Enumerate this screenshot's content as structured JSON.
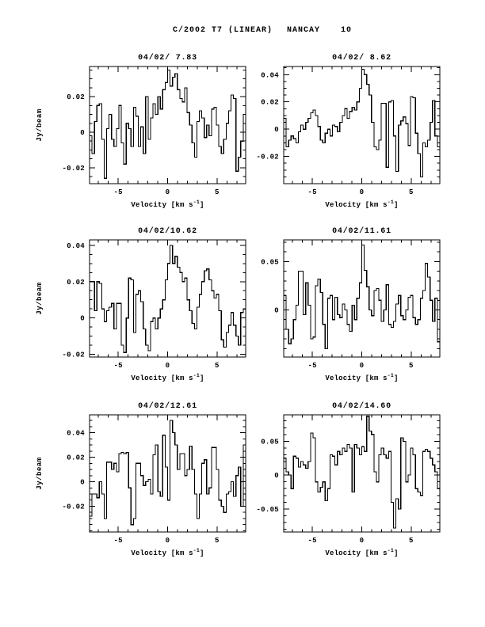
{
  "header": {
    "comet": "C/2002 T7 (LINEAR)",
    "telescope": "NANCAY",
    "page_number": "10"
  },
  "chart_data": [
    {
      "type": "line",
      "style": "histogram-step",
      "title": "04/02/ 7.83",
      "xlabel_main": "Velocity [km s",
      "xlabel_sup": "-1",
      "xlabel_close": "]",
      "ylabel": "Jy/beam",
      "x_range": [
        -7.9,
        7.9
      ],
      "y_range": [
        -0.029,
        0.037
      ],
      "xticks": [
        -5,
        0,
        5
      ],
      "xtick_labels": [
        "-5",
        "0",
        "5"
      ],
      "x_minor_step": 1,
      "yticks": [
        0.02,
        0,
        -0.02
      ],
      "ytick_labels": [
        "0.02",
        "0",
        "-0.02"
      ],
      "y_minor_step": 0.005,
      "values": [
        -0.002,
        -0.012,
        0.006,
        0.015,
        0.016,
        -0.004,
        -0.026,
        0.002,
        0.01,
        -0.004,
        -0.008,
        0.002,
        0.015,
        -0.006,
        -0.018,
        0.005,
        0.002,
        -0.008,
        0.014,
        0.009,
        -0.008,
        0.003,
        -0.012,
        0.02,
        -0.004,
        0.008,
        0.016,
        0.01,
        0.02,
        0.013,
        0.024,
        0.028,
        0.035,
        0.026,
        0.031,
        0.033,
        0.024,
        0.019,
        0.017,
        0.025,
        0.011,
        0.004,
        -0.006,
        -0.014,
        0.006,
        0.012,
        0.008,
        -0.003,
        0.004,
        -0.002,
        0.013,
        0.014,
        0.004,
        -0.008,
        -0.012,
        -0.004,
        0.005,
        0.012,
        0.021,
        0.019,
        -0.022,
        -0.014,
        -0.005,
        0.01
      ]
    },
    {
      "type": "line",
      "style": "histogram-step",
      "title": "04/02/ 8.62",
      "xlabel_main": "Velocity [km s",
      "xlabel_sup": "-1",
      "xlabel_close": "]",
      "ylabel": "",
      "x_range": [
        -7.9,
        7.9
      ],
      "y_range": [
        -0.04,
        0.046
      ],
      "xticks": [
        -5,
        0,
        5
      ],
      "xtick_labels": [
        "-5",
        "0",
        "5"
      ],
      "x_minor_step": 1,
      "yticks": [
        0.04,
        0.02,
        0,
        -0.02
      ],
      "ytick_labels": [
        "0.04",
        "0.02",
        "0",
        "-0.02"
      ],
      "y_minor_step": 0.005,
      "values": [
        0.008,
        -0.013,
        -0.008,
        -0.005,
        -0.007,
        -0.01,
        -0.002,
        0.003,
        0.0,
        0.005,
        0.008,
        0.012,
        0.014,
        0.01,
        0.002,
        -0.008,
        -0.01,
        -0.003,
        0.0,
        -0.005,
        0.003,
        0.002,
        -0.002,
        0.005,
        0.01,
        0.015,
        0.008,
        0.013,
        0.016,
        0.014,
        0.02,
        0.03,
        0.044,
        0.04,
        0.033,
        0.025,
        0.005,
        -0.013,
        -0.015,
        -0.008,
        0.019,
        0.019,
        -0.028,
        0.02,
        0.021,
        -0.005,
        -0.031,
        0.003,
        0.006,
        0.009,
        0.004,
        -0.012,
        0.024,
        0.023,
        -0.003,
        -0.018,
        -0.035,
        -0.01,
        -0.013,
        -0.008,
        0.005,
        0.021,
        -0.005,
        -0.013
      ]
    },
    {
      "type": "line",
      "style": "histogram-step",
      "title": "04/02/10.62",
      "xlabel_main": "Velocity [km s",
      "xlabel_sup": "-1",
      "xlabel_close": "]",
      "ylabel": "Jy/beam",
      "x_range": [
        -7.9,
        7.9
      ],
      "y_range": [
        -0.0215,
        0.043
      ],
      "xticks": [
        -5,
        0,
        5
      ],
      "xtick_labels": [
        "-5",
        "0",
        "5"
      ],
      "x_minor_step": 1,
      "yticks": [
        0.04,
        0.02,
        0,
        -0.02
      ],
      "ytick_labels": [
        "0.04",
        "0.02",
        "0",
        "-0.02"
      ],
      "y_minor_step": 0.005,
      "values": [
        0.02,
        0.02,
        0.004,
        0.02,
        0.019,
        0.005,
        -0.002,
        0.004,
        0.006,
        0.008,
        -0.006,
        0.008,
        0.008,
        -0.015,
        -0.019,
        0.0,
        0.022,
        0.021,
        -0.008,
        0.013,
        0.015,
        0.009,
        -0.006,
        -0.015,
        -0.018,
        -0.002,
        0.0,
        -0.006,
        0.0,
        0.005,
        0.01,
        0.021,
        0.03,
        0.04,
        0.03,
        0.034,
        0.028,
        0.025,
        0.02,
        0.022,
        0.01,
        0.004,
        -0.003,
        -0.006,
        0.006,
        0.013,
        0.02,
        0.026,
        0.027,
        0.021,
        0.015,
        0.011,
        0.013,
        0.004,
        -0.012,
        -0.016,
        -0.008,
        -0.004,
        0.003,
        -0.004,
        -0.01,
        -0.015,
        0.003,
        0.005
      ]
    },
    {
      "type": "line",
      "style": "histogram-step",
      "title": "04/02/11.61",
      "xlabel_main": "Velocity [km s",
      "xlabel_sup": "-1",
      "xlabel_close": "]",
      "ylabel": "",
      "x_range": [
        -7.9,
        7.9
      ],
      "y_range": [
        -0.0487,
        0.0724
      ],
      "xticks": [
        -5,
        0,
        5
      ],
      "xtick_labels": [
        "-5",
        "0",
        "5"
      ],
      "x_minor_step": 1,
      "yticks": [
        0.05,
        0
      ],
      "ytick_labels": [
        "0.05",
        "0"
      ],
      "y_minor_step": 0.01,
      "values": [
        0.015,
        -0.02,
        -0.035,
        -0.03,
        -0.01,
        0.005,
        0.04,
        0.04,
        -0.005,
        0.028,
        0.005,
        -0.03,
        -0.028,
        0.025,
        0.032,
        0.018,
        -0.015,
        -0.04,
        0.012,
        0.015,
        -0.01,
        0.013,
        -0.005,
        -0.008,
        0.006,
        0.0,
        -0.015,
        -0.022,
        0.005,
        -0.01,
        0.012,
        0.028,
        0.067,
        0.041,
        0.024,
        0.0,
        -0.006,
        0.02,
        0.022,
        0.01,
        -0.012,
        0.0,
        0.026,
        -0.015,
        -0.018,
        -0.012,
        0.006,
        0.015,
        -0.006,
        -0.01,
        0.0,
        0.013,
        0.015,
        -0.008,
        -0.015,
        -0.01,
        0.012,
        0.02,
        0.048,
        0.034,
        0.01,
        -0.012,
        0.012,
        -0.033
      ]
    },
    {
      "type": "line",
      "style": "histogram-step",
      "title": "04/02/12.61",
      "xlabel_main": "Velocity [km s",
      "xlabel_sup": "-1",
      "xlabel_close": "]",
      "ylabel": "Jy/beam",
      "x_range": [
        -7.9,
        7.9
      ],
      "y_range": [
        -0.041,
        0.0546
      ],
      "xticks": [
        -5,
        0,
        5
      ],
      "xtick_labels": [
        "-5",
        "0",
        "5"
      ],
      "x_minor_step": 1,
      "yticks": [
        0.04,
        0.02,
        0,
        -0.02
      ],
      "ytick_labels": [
        "0.04",
        "0.02",
        "0",
        "-0.02"
      ],
      "y_minor_step": 0.005,
      "values": [
        -0.028,
        -0.01,
        -0.01,
        -0.013,
        0.0,
        -0.01,
        -0.03,
        0.016,
        0.016,
        0.01,
        0.015,
        0.008,
        0.023,
        0.024,
        0.023,
        0.024,
        -0.005,
        -0.035,
        -0.03,
        0.015,
        0.015,
        0.005,
        -0.003,
        0.0,
        0.002,
        -0.01,
        0.022,
        0.03,
        -0.008,
        -0.012,
        0.038,
        0.012,
        -0.015,
        0.05,
        0.04,
        0.03,
        0.01,
        0.023,
        0.023,
        0.005,
        0.01,
        0.029,
        0.01,
        -0.01,
        -0.03,
        -0.01,
        0.015,
        0.018,
        -0.01,
        -0.005,
        0.028,
        0.028,
        0.01,
        -0.015,
        -0.02,
        -0.025,
        -0.01,
        -0.008,
        0.0,
        -0.012,
        0.005,
        0.012,
        -0.02,
        0.03
      ]
    },
    {
      "type": "line",
      "style": "histogram-step",
      "title": "04/02/14.60",
      "xlabel_main": "Velocity [km s",
      "xlabel_sup": "-1",
      "xlabel_close": "]",
      "ylabel": "",
      "x_range": [
        -7.9,
        7.9
      ],
      "y_range": [
        -0.084,
        0.089
      ],
      "xticks": [
        -5,
        0,
        5
      ],
      "xtick_labels": [
        "-5",
        "0",
        "5"
      ],
      "x_minor_step": 1,
      "yticks": [
        0.05,
        0,
        -0.05
      ],
      "ytick_labels": [
        "0.05",
        "0",
        "-0.05"
      ],
      "y_minor_step": 0.01,
      "values": [
        0.025,
        0.005,
        0.0,
        -0.02,
        0.028,
        0.025,
        0.012,
        0.02,
        0.015,
        0.01,
        0.02,
        0.062,
        0.055,
        -0.01,
        -0.025,
        -0.018,
        -0.01,
        -0.038,
        -0.02,
        0.03,
        0.028,
        0.015,
        0.035,
        0.03,
        0.04,
        0.035,
        0.045,
        0.04,
        -0.025,
        0.045,
        0.04,
        0.03,
        0.042,
        0.035,
        0.087,
        0.065,
        0.06,
        0.005,
        -0.01,
        0.03,
        0.04,
        0.03,
        0.025,
        0.035,
        -0.04,
        -0.078,
        -0.035,
        -0.05,
        0.055,
        0.05,
        -0.01,
        0.0,
        0.04,
        0.03,
        -0.02,
        -0.025,
        -0.03,
        0.035,
        0.038,
        0.035,
        0.025,
        0.015,
        0.005,
        -0.02
      ]
    }
  ]
}
